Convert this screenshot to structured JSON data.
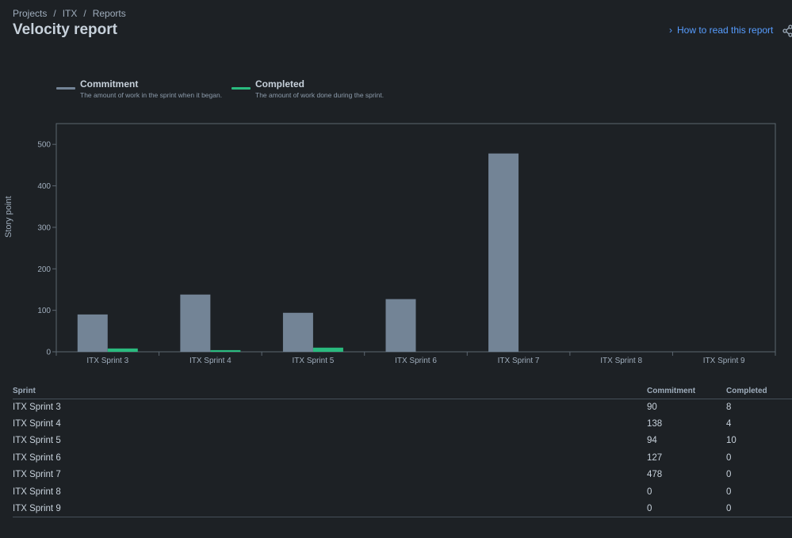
{
  "breadcrumb": {
    "items": [
      "Projects",
      "ITX",
      "Reports"
    ],
    "separator": "/"
  },
  "page": {
    "title": "Velocity report"
  },
  "help_link": {
    "label": "How to read this report"
  },
  "legend": [
    {
      "name": "Commitment",
      "description": "The amount of work in the sprint when it began.",
      "color": "#738496"
    },
    {
      "name": "Completed",
      "description": "The amount of work done during the sprint.",
      "color": "#2abb7f"
    }
  ],
  "chart_data": {
    "type": "bar",
    "categories": [
      "ITX Sprint 3",
      "ITX Sprint 4",
      "ITX Sprint 5",
      "ITX Sprint 6",
      "ITX Sprint 7",
      "ITX Sprint 8",
      "ITX Sprint 9"
    ],
    "series": [
      {
        "name": "Commitment",
        "values": [
          90,
          138,
          94,
          127,
          478,
          0,
          0
        ],
        "color": "#738496"
      },
      {
        "name": "Completed",
        "values": [
          8,
          4,
          10,
          0,
          0,
          0,
          0
        ],
        "color": "#2abb7f"
      }
    ],
    "ylabel": "Story point",
    "ylim": [
      0,
      500
    ],
    "yticks": [
      0,
      100,
      200,
      300,
      400,
      500
    ],
    "grid": false,
    "legend_position": "top-left"
  },
  "table": {
    "headers": [
      "Sprint",
      "Commitment",
      "Completed"
    ],
    "rows": [
      [
        "ITX Sprint 3",
        "90",
        "8"
      ],
      [
        "ITX Sprint 4",
        "138",
        "4"
      ],
      [
        "ITX Sprint 5",
        "94",
        "10"
      ],
      [
        "ITX Sprint 6",
        "127",
        "0"
      ],
      [
        "ITX Sprint 7",
        "478",
        "0"
      ],
      [
        "ITX Sprint 8",
        "0",
        "0"
      ],
      [
        "ITX Sprint 9",
        "0",
        "0"
      ]
    ]
  }
}
